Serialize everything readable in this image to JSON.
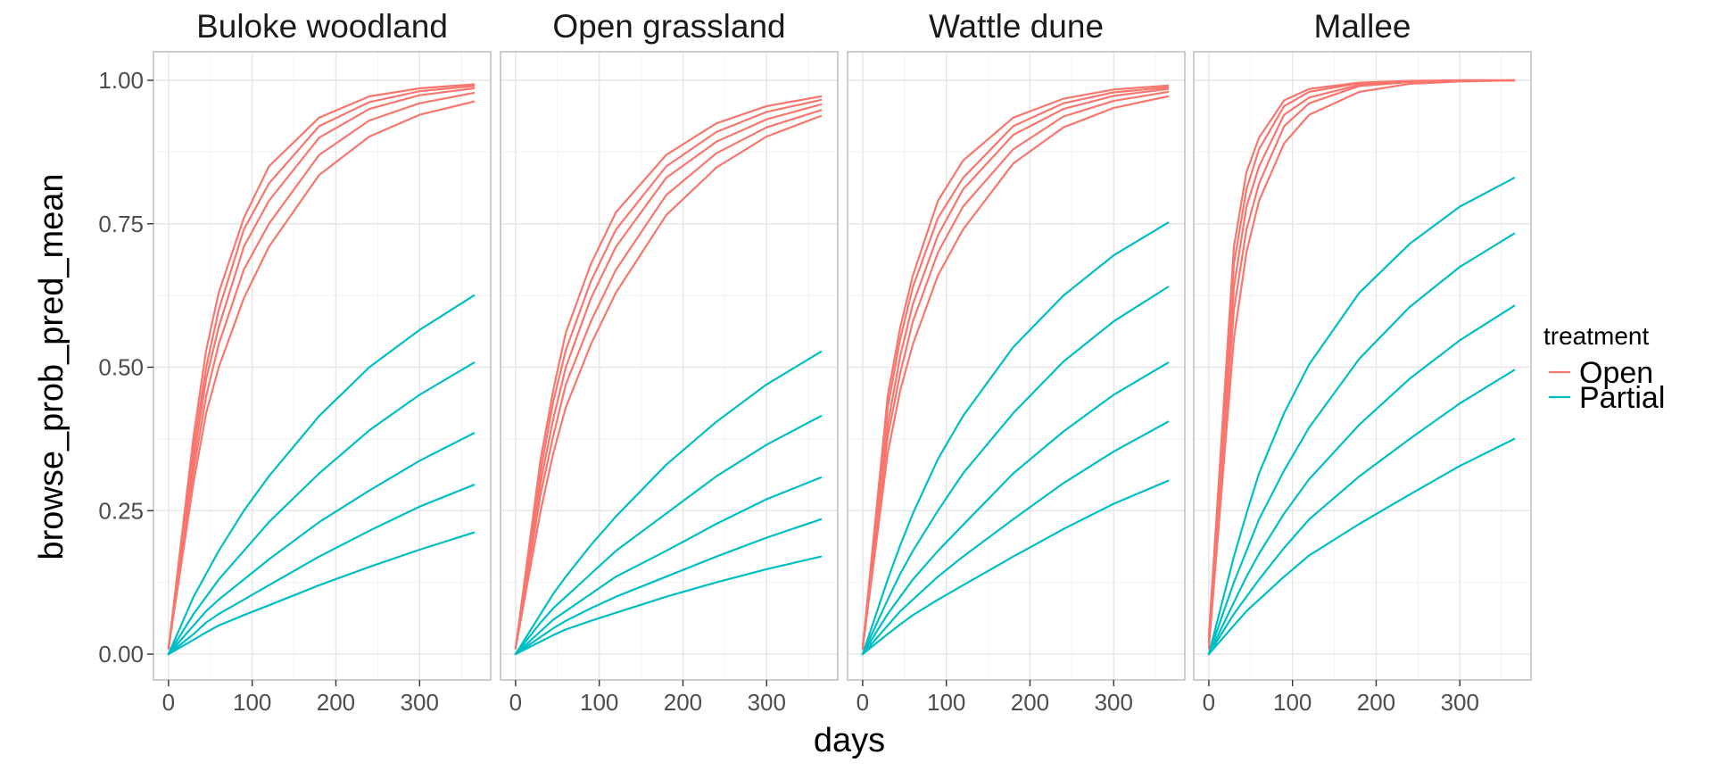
{
  "chart_data": {
    "type": "line",
    "xlabel": "days",
    "ylabel": "browse_prob_pred_mean",
    "xlim": [
      -18,
      385
    ],
    "ylim": [
      -0.05,
      1.05
    ],
    "x_ticks": [
      0,
      100,
      200,
      300
    ],
    "y_ticks": [
      0,
      0.25,
      0.5,
      0.75,
      1.0
    ],
    "x_tick_labels": [
      "0",
      "100",
      "200",
      "300"
    ],
    "y_tick_labels": [
      "0.00",
      "0.25",
      "0.50",
      "0.75",
      "1.00"
    ],
    "grid": true,
    "legend": {
      "title": "treatment",
      "position": "right",
      "entries": [
        {
          "label": "Open",
          "color": "#F8766D"
        },
        {
          "label": "Partial",
          "color": "#00BFC4"
        }
      ]
    },
    "x": [
      0,
      30,
      45,
      60,
      90,
      120,
      180,
      240,
      300,
      365
    ],
    "panels": [
      {
        "title": "Buloke woodland",
        "series": [
          {
            "treatment": "Open",
            "values": [
              0.01,
              0.38,
              0.53,
              0.63,
              0.76,
              0.85,
              0.935,
              0.972,
              0.986,
              0.993
            ]
          },
          {
            "treatment": "Open",
            "values": [
              0.01,
              0.36,
              0.5,
              0.6,
              0.74,
              0.82,
              0.92,
              0.962,
              0.981,
              0.99
            ]
          },
          {
            "treatment": "Open",
            "values": [
              0.01,
              0.34,
              0.48,
              0.57,
              0.71,
              0.79,
              0.9,
              0.95,
              0.974,
              0.986
            ]
          },
          {
            "treatment": "Open",
            "values": [
              0.01,
              0.32,
              0.45,
              0.54,
              0.67,
              0.75,
              0.87,
              0.93,
              0.96,
              0.978
            ]
          },
          {
            "treatment": "Open",
            "values": [
              0.01,
              0.3,
              0.42,
              0.5,
              0.62,
              0.71,
              0.835,
              0.902,
              0.94,
              0.963
            ]
          },
          {
            "treatment": "Partial",
            "values": [
              0.0,
              0.1,
              0.14,
              0.18,
              0.25,
              0.31,
              0.415,
              0.5,
              0.565,
              0.625
            ]
          },
          {
            "treatment": "Partial",
            "values": [
              0.0,
              0.07,
              0.1,
              0.13,
              0.18,
              0.23,
              0.315,
              0.39,
              0.452,
              0.508
            ]
          },
          {
            "treatment": "Partial",
            "values": [
              0.0,
              0.05,
              0.075,
              0.095,
              0.13,
              0.165,
              0.23,
              0.285,
              0.337,
              0.385
            ]
          },
          {
            "treatment": "Partial",
            "values": [
              0.0,
              0.035,
              0.055,
              0.07,
              0.095,
              0.12,
              0.17,
              0.215,
              0.257,
              0.295
            ]
          },
          {
            "treatment": "Partial",
            "values": [
              0.0,
              0.025,
              0.038,
              0.05,
              0.068,
              0.085,
              0.12,
              0.152,
              0.182,
              0.212
            ]
          }
        ]
      },
      {
        "title": "Open grassland",
        "series": [
          {
            "treatment": "Open",
            "values": [
              0.01,
              0.34,
              0.46,
              0.56,
              0.68,
              0.77,
              0.87,
              0.925,
              0.955,
              0.972
            ]
          },
          {
            "treatment": "Open",
            "values": [
              0.01,
              0.32,
              0.44,
              0.53,
              0.65,
              0.74,
              0.85,
              0.91,
              0.945,
              0.966
            ]
          },
          {
            "treatment": "Open",
            "values": [
              0.01,
              0.3,
              0.41,
              0.5,
              0.62,
              0.71,
              0.83,
              0.893,
              0.932,
              0.958
            ]
          },
          {
            "treatment": "Open",
            "values": [
              0.01,
              0.28,
              0.38,
              0.47,
              0.58,
              0.67,
              0.8,
              0.873,
              0.918,
              0.948
            ]
          },
          {
            "treatment": "Open",
            "values": [
              0.01,
              0.25,
              0.35,
              0.43,
              0.54,
              0.63,
              0.765,
              0.848,
              0.902,
              0.938
            ]
          },
          {
            "treatment": "Partial",
            "values": [
              0.0,
              0.07,
              0.105,
              0.135,
              0.19,
              0.24,
              0.33,
              0.405,
              0.47,
              0.527
            ]
          },
          {
            "treatment": "Partial",
            "values": [
              0.0,
              0.055,
              0.08,
              0.1,
              0.14,
              0.18,
              0.245,
              0.31,
              0.365,
              0.415
            ]
          },
          {
            "treatment": "Partial",
            "values": [
              0.0,
              0.04,
              0.06,
              0.075,
              0.105,
              0.135,
              0.18,
              0.227,
              0.27,
              0.308
            ]
          },
          {
            "treatment": "Partial",
            "values": [
              0.0,
              0.03,
              0.045,
              0.058,
              0.08,
              0.1,
              0.135,
              0.17,
              0.203,
              0.235
            ]
          },
          {
            "treatment": "Partial",
            "values": [
              0.0,
              0.022,
              0.033,
              0.043,
              0.058,
              0.072,
              0.1,
              0.125,
              0.148,
              0.17
            ]
          }
        ]
      },
      {
        "title": "Wattle dune",
        "series": [
          {
            "treatment": "Open",
            "values": [
              0.01,
              0.45,
              0.57,
              0.66,
              0.79,
              0.86,
              0.935,
              0.968,
              0.984,
              0.991
            ]
          },
          {
            "treatment": "Open",
            "values": [
              0.01,
              0.43,
              0.55,
              0.64,
              0.76,
              0.83,
              0.92,
              0.96,
              0.979,
              0.988
            ]
          },
          {
            "treatment": "Open",
            "values": [
              0.01,
              0.4,
              0.52,
              0.61,
              0.73,
              0.81,
              0.905,
              0.95,
              0.973,
              0.985
            ]
          },
          {
            "treatment": "Open",
            "values": [
              0.01,
              0.38,
              0.49,
              0.58,
              0.7,
              0.78,
              0.88,
              0.937,
              0.964,
              0.98
            ]
          },
          {
            "treatment": "Open",
            "values": [
              0.01,
              0.35,
              0.46,
              0.54,
              0.66,
              0.74,
              0.855,
              0.918,
              0.952,
              0.972
            ]
          },
          {
            "treatment": "Partial",
            "values": [
              0.0,
              0.13,
              0.19,
              0.245,
              0.34,
              0.415,
              0.535,
              0.625,
              0.695,
              0.752
            ]
          },
          {
            "treatment": "Partial",
            "values": [
              0.0,
              0.095,
              0.14,
              0.18,
              0.25,
              0.315,
              0.42,
              0.51,
              0.58,
              0.64
            ]
          },
          {
            "treatment": "Partial",
            "values": [
              0.0,
              0.07,
              0.1,
              0.13,
              0.18,
              0.225,
              0.315,
              0.388,
              0.452,
              0.508
            ]
          },
          {
            "treatment": "Partial",
            "values": [
              0.0,
              0.05,
              0.075,
              0.095,
              0.135,
              0.17,
              0.235,
              0.298,
              0.353,
              0.405
            ]
          },
          {
            "treatment": "Partial",
            "values": [
              0.0,
              0.035,
              0.052,
              0.068,
              0.095,
              0.12,
              0.17,
              0.218,
              0.262,
              0.302
            ]
          }
        ]
      },
      {
        "title": "Mallee",
        "series": [
          {
            "treatment": "Open",
            "values": [
              0.03,
              0.71,
              0.84,
              0.9,
              0.965,
              0.985,
              0.996,
              0.999,
              1.0,
              1.0
            ]
          },
          {
            "treatment": "Open",
            "values": [
              0.03,
              0.68,
              0.81,
              0.88,
              0.955,
              0.98,
              0.995,
              0.998,
              1.0,
              1.0
            ]
          },
          {
            "treatment": "Open",
            "values": [
              0.02,
              0.64,
              0.78,
              0.85,
              0.94,
              0.97,
              0.992,
              0.998,
              0.999,
              1.0
            ]
          },
          {
            "treatment": "Open",
            "values": [
              0.02,
              0.6,
              0.74,
              0.82,
              0.92,
              0.96,
              0.99,
              0.997,
              0.999,
              1.0
            ]
          },
          {
            "treatment": "Open",
            "values": [
              0.01,
              0.55,
              0.7,
              0.79,
              0.89,
              0.94,
              0.98,
              0.994,
              0.998,
              1.0
            ]
          },
          {
            "treatment": "Partial",
            "values": [
              0.0,
              0.17,
              0.245,
              0.315,
              0.42,
              0.505,
              0.63,
              0.715,
              0.78,
              0.83
            ]
          },
          {
            "treatment": "Partial",
            "values": [
              0.0,
              0.125,
              0.18,
              0.235,
              0.32,
              0.395,
              0.515,
              0.605,
              0.675,
              0.733
            ]
          },
          {
            "treatment": "Partial",
            "values": [
              0.0,
              0.09,
              0.135,
              0.175,
              0.245,
              0.305,
              0.4,
              0.48,
              0.547,
              0.607
            ]
          },
          {
            "treatment": "Partial",
            "values": [
              0.0,
              0.07,
              0.1,
              0.13,
              0.185,
              0.235,
              0.31,
              0.375,
              0.437,
              0.495
            ]
          },
          {
            "treatment": "Partial",
            "values": [
              0.0,
              0.05,
              0.075,
              0.095,
              0.135,
              0.172,
              0.227,
              0.278,
              0.328,
              0.375
            ]
          }
        ]
      }
    ]
  }
}
